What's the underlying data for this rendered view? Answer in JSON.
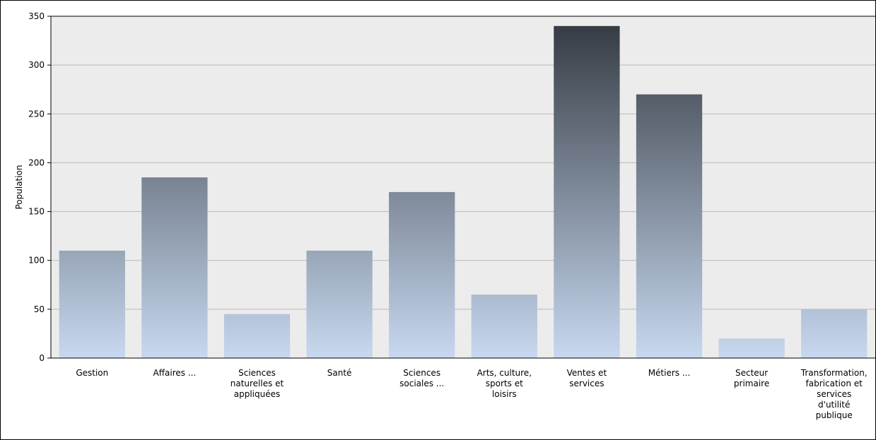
{
  "chart_data": {
    "type": "bar",
    "title": "",
    "xlabel": "",
    "ylabel": "Population",
    "ylim": [
      0,
      350
    ],
    "yticks": [
      0,
      50,
      100,
      150,
      200,
      250,
      300,
      350
    ],
    "grid": true,
    "legend": "none",
    "categories": [
      "Gestion",
      "Affaires ...",
      "Sciences naturelles et appliquées",
      "Santé",
      "Sciences sociales ...",
      "Arts, culture, sports et loisirs",
      "Ventes et services",
      "Métiers ...",
      "Secteur primaire",
      "Transformation, fabrication et services d'utilité publique"
    ],
    "category_lines": [
      [
        "Gestion"
      ],
      [
        "Affaires ..."
      ],
      [
        "Sciences",
        "naturelles et",
        "appliquées"
      ],
      [
        "Santé"
      ],
      [
        "Sciences",
        "sociales ..."
      ],
      [
        "Arts, culture,",
        "sports et",
        "loisirs"
      ],
      [
        "Ventes et",
        "services"
      ],
      [
        "Métiers ..."
      ],
      [
        "Secteur",
        "primaire"
      ],
      [
        "Transformation,",
        "fabrication et",
        "services",
        "d'utilité",
        "publique"
      ]
    ],
    "values": [
      110,
      185,
      45,
      110,
      170,
      65,
      340,
      270,
      20,
      50
    ],
    "colors": {
      "plot_background": "#ececec",
      "gridline": "#b9b9b9",
      "bar_bottom": "#c7d8f0",
      "bar_top_max": "#363c44",
      "axis": "#000000"
    }
  }
}
